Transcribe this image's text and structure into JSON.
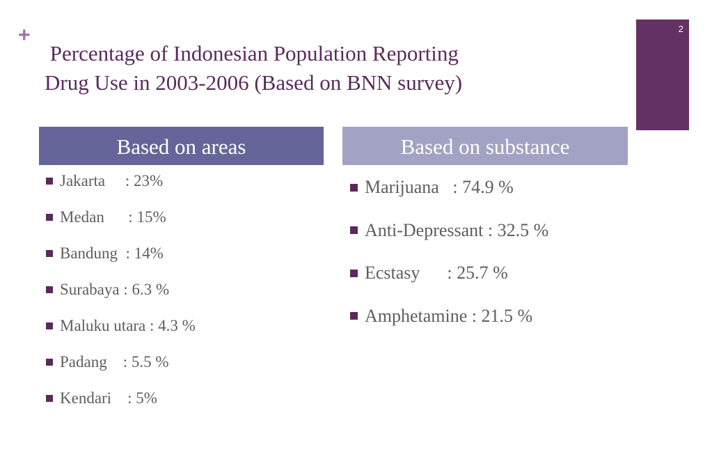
{
  "slide": {
    "page_number": "2",
    "plus_symbol": "+",
    "title_line_1": " Percentage of Indonesian Population Reporting",
    "title_line_2": "Drug Use in 2003-2006 (Based on BNN survey)",
    "bullet_icon": "square-bullet-icon"
  },
  "colors": {
    "title": "#5a2a5c",
    "plus": "#a86ab0",
    "page_tab": "#633163",
    "header_areas_bg": "#65659a",
    "header_substance_bg": "#a2a2c4",
    "bullet": "#5a2a5c",
    "body_text": "#5e5e5e"
  },
  "areas": {
    "header": "Based on areas",
    "items": [
      "Jakarta     : 23%",
      "Medan      : 15%",
      "Bandung  : 14%",
      "Surabaya : 6.3 %",
      "Maluku utara : 4.3 %",
      "Padang    : 5.5 %",
      "Kendari    : 5%"
    ]
  },
  "substance": {
    "header": "Based on substance",
    "items": [
      "Marijuana   : 74.9 %",
      "Anti-Depressant : 32.5 %",
      "Ecstasy      : 25.7 %",
      "Amphetamine : 21.5 %"
    ]
  }
}
